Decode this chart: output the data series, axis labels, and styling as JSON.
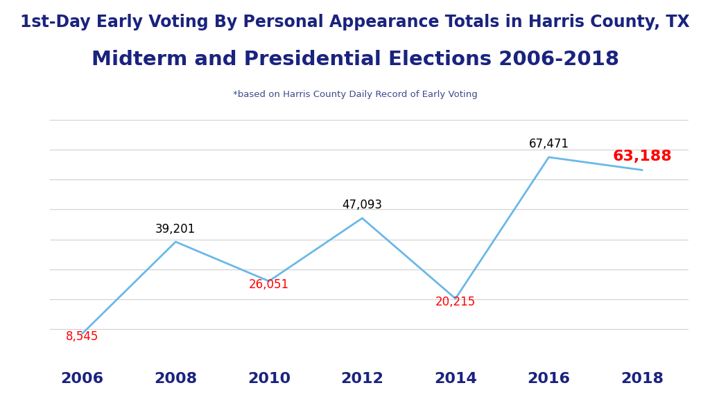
{
  "years": [
    2006,
    2008,
    2010,
    2012,
    2014,
    2016,
    2018
  ],
  "values": [
    8545,
    39201,
    26051,
    47093,
    20215,
    67471,
    63188
  ],
  "label_colors": [
    "red",
    "black",
    "red",
    "black",
    "red",
    "black",
    "red"
  ],
  "label_offsets_y": [
    -3200,
    2200,
    -3200,
    2200,
    -3200,
    2200,
    2200
  ],
  "line_color": "#6ab8e8",
  "line_width": 2.0,
  "title_line1": "1st-Day Early Voting By Personal Appearance Totals in Harris County, TX",
  "title_line2": "Midterm and Presidential Elections 2006-2018",
  "subtitle": "*based on Harris County Daily Record of Early Voting",
  "title_color": "#1a237e",
  "subtitle_color": "#3c4a8a",
  "title1_fontsize": 17,
  "title2_fontsize": 21,
  "subtitle_fontsize": 9.5,
  "xlabel_fontsize": 16,
  "label_fontsize": 12,
  "label_2018_fontsize": 16,
  "bg_color": "#ffffff",
  "grid_color": "#d0d0d0",
  "ylim": [
    0,
    80000
  ],
  "xlim": [
    2005.3,
    2019.0
  ],
  "tick_color": "#1a237e",
  "yticks": [
    0,
    10000,
    20000,
    30000,
    40000,
    50000,
    60000,
    70000,
    80000
  ]
}
